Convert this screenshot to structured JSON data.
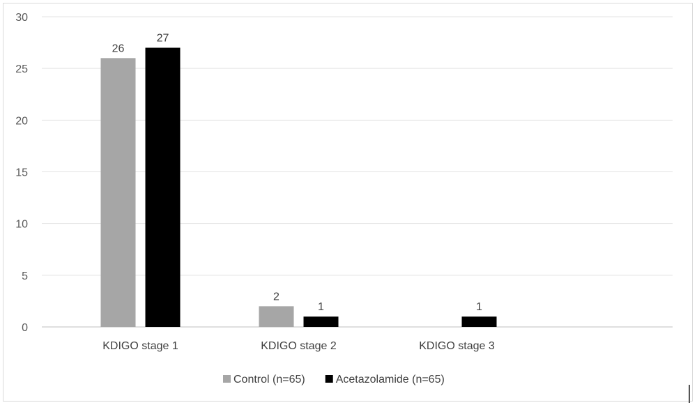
{
  "chart_data": {
    "type": "bar",
    "categories": [
      "KDIGO stage 1",
      "KDIGO stage 2",
      "KDIGO stage 3"
    ],
    "series": [
      {
        "name": "Control (n=65)",
        "values": [
          26,
          2,
          null
        ],
        "color": "#a6a6a6"
      },
      {
        "name": "Acetazolamide (n=65)",
        "values": [
          27,
          1,
          1
        ],
        "color": "#000000"
      }
    ],
    "yticks": [
      "0",
      "5",
      "10",
      "15",
      "20",
      "25",
      "30"
    ],
    "ylim": [
      0,
      30
    ],
    "grid": true,
    "legend_position": "bottom"
  }
}
